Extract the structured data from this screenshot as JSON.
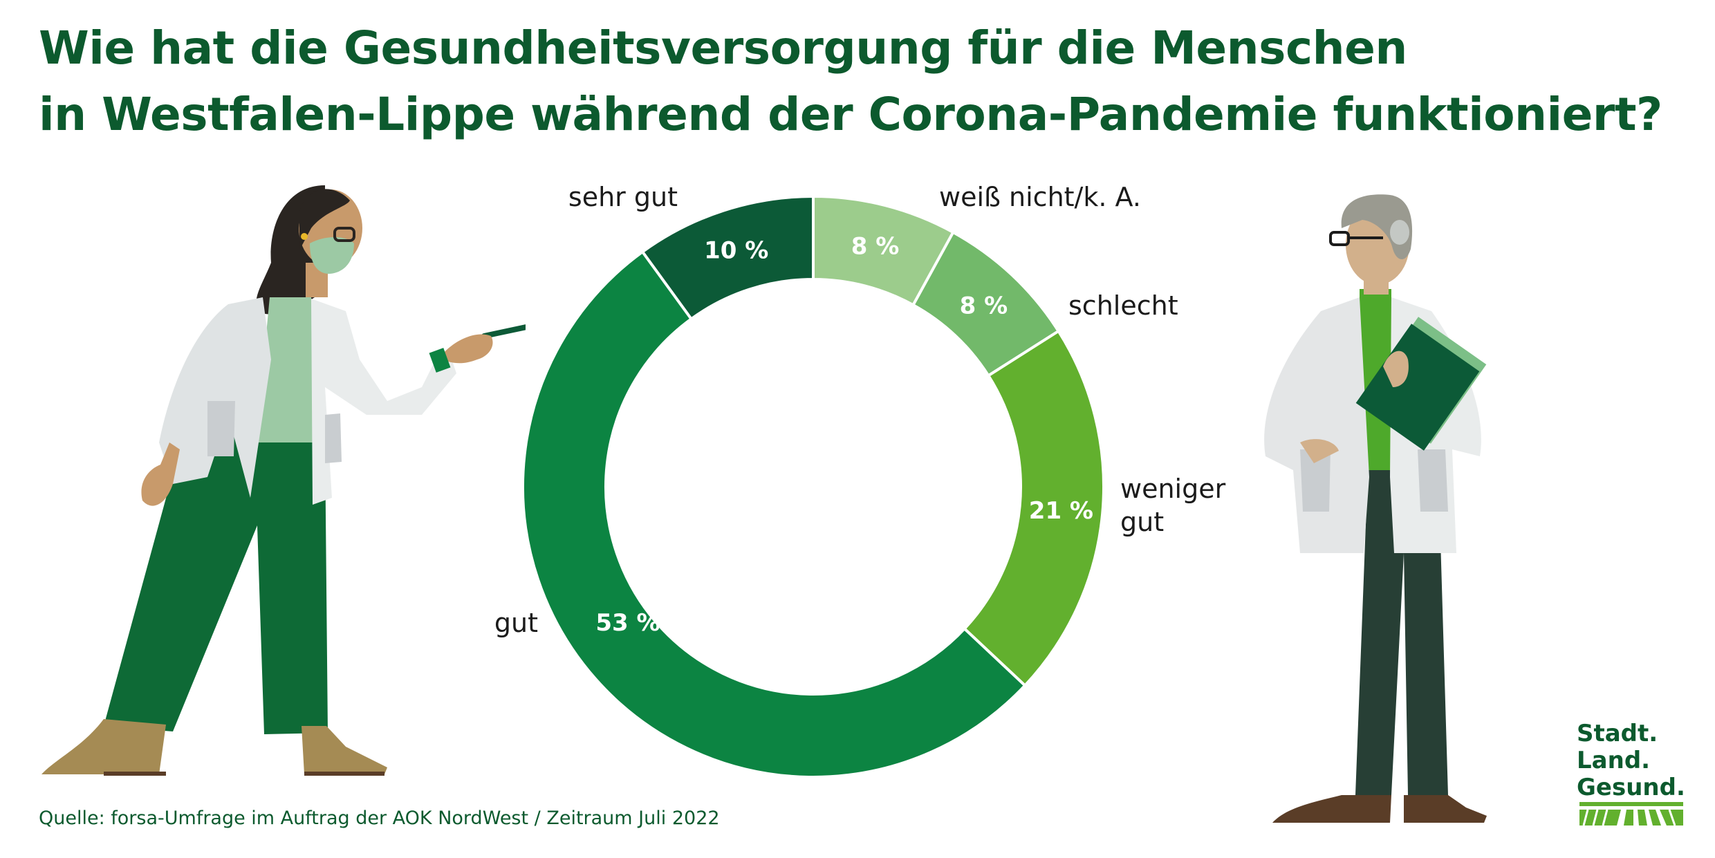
{
  "title": {
    "line1": "Wie hat die Gesundheitsversorgung für die Menschen",
    "line2": "in Westfalen-Lippe während der Corona-Pandemie funktioniert?"
  },
  "source": "Quelle: forsa-Umfrage im Auftrag der AOK NordWest / Zeitraum Juli 2022",
  "logo": {
    "line1": "Stadt.",
    "line2": "Land.",
    "line3": "Gesund."
  },
  "colors": {
    "title": "#0c5a2e",
    "sehr_gut": "#0c5a37",
    "weiss_nicht": "#9ccc8c",
    "schlecht": "#72b96a",
    "weniger_gut": "#62b02e",
    "gut": "#0c8442"
  },
  "chart_data": {
    "type": "pie",
    "donut": true,
    "title": "Wie hat die Gesundheitsversorgung für die Menschen in Westfalen-Lippe während der Corona-Pandemie funktioniert?",
    "unit": "%",
    "slices": [
      {
        "label": "weiß nicht/k. A.",
        "value": 8,
        "value_label": "8 %",
        "color": "#9ccc8c"
      },
      {
        "label": "schlecht",
        "value": 8,
        "value_label": "8 %",
        "color": "#72b96a"
      },
      {
        "label": "weniger gut",
        "value": 21,
        "value_label": "21 %",
        "color": "#62b02e"
      },
      {
        "label": "gut",
        "value": 53,
        "value_label": "53 %",
        "color": "#0c8442"
      },
      {
        "label": "sehr gut",
        "value": 10,
        "value_label": "10 %",
        "color": "#0c5a37"
      }
    ]
  }
}
